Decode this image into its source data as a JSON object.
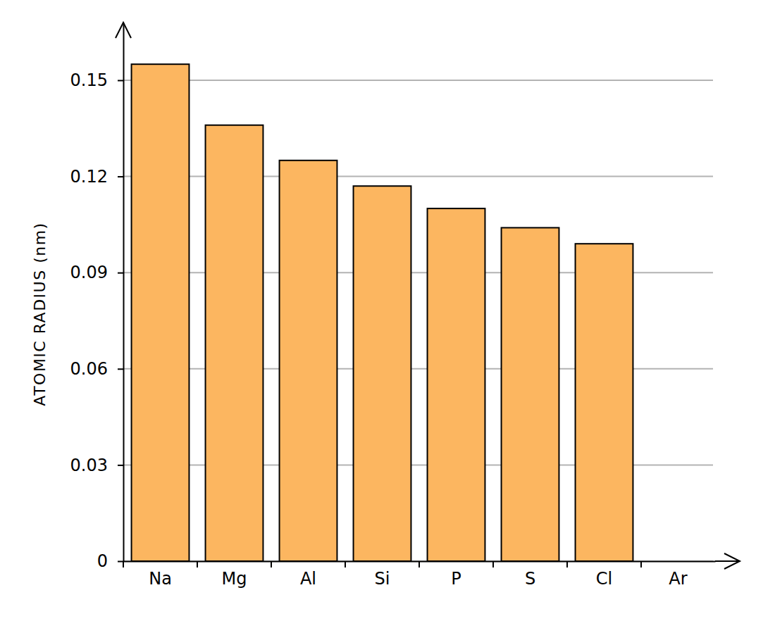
{
  "chart_data": {
    "type": "bar",
    "y_label": "ATOMIC RADIUS (nm)",
    "categories": [
      "Na",
      "Mg",
      "Al",
      "Si",
      "P",
      "S",
      "Cl",
      "Ar"
    ],
    "values": [
      0.155,
      0.136,
      0.125,
      0.117,
      0.11,
      0.104,
      0.099,
      null
    ],
    "color": "#fcb660",
    "ylim": [
      0,
      0.168
    ],
    "yticks": [
      0,
      0.03,
      0.06,
      0.09,
      0.12,
      0.15
    ],
    "grid": true
  }
}
